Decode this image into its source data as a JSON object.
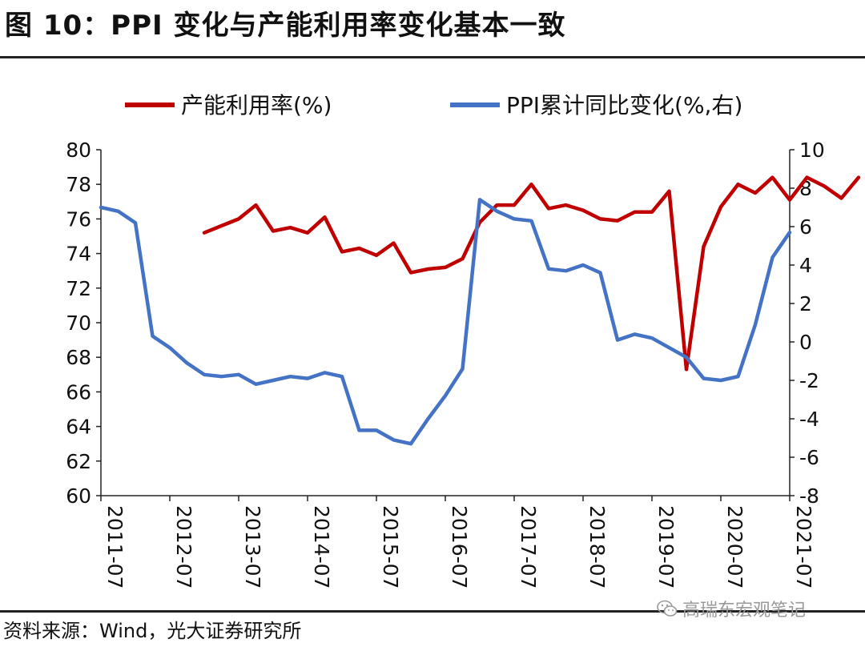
{
  "title": "图 10：PPI 变化与产能利用率变化基本一致",
  "source": "资料来源：Wind，光大证券研究所",
  "watermark": "高瑞东宏观笔记",
  "chart_data": {
    "type": "line",
    "legend": [
      {
        "name": "产能利用率(%)",
        "color": "#c00000"
      },
      {
        "name": "PPI累计同比变化(%,右)",
        "color": "#4472c4"
      }
    ],
    "legend_position": "top",
    "x_ticks": [
      "2011-07",
      "2012-07",
      "2013-07",
      "2014-07",
      "2015-07",
      "2016-07",
      "2017-07",
      "2018-07",
      "2019-07",
      "2020-07",
      "2021-07"
    ],
    "y_left": {
      "min": 60,
      "max": 80,
      "ticks": [
        60,
        62,
        64,
        66,
        68,
        70,
        72,
        74,
        76,
        78,
        80
      ]
    },
    "y_right": {
      "min": -8,
      "max": 10,
      "ticks": [
        -8,
        -6,
        -4,
        -2,
        0,
        2,
        4,
        6,
        8,
        10
      ]
    },
    "grid": false,
    "series": [
      {
        "name": "产能利用率(%)",
        "axis": "left",
        "color": "#c00000",
        "x": [
          2013.0,
          2013.25,
          2013.5,
          2013.75,
          2014.0,
          2014.25,
          2014.5,
          2014.75,
          2015.0,
          2015.25,
          2015.5,
          2015.75,
          2016.0,
          2016.25,
          2016.5,
          2016.75,
          2017.0,
          2017.25,
          2017.5,
          2017.75,
          2018.0,
          2018.25,
          2018.5,
          2018.75,
          2019.0,
          2019.25,
          2019.5,
          2019.75,
          2020.0,
          2020.25,
          2020.5,
          2020.75,
          2021.0,
          2021.25,
          2021.5,
          2021.75,
          2022.0,
          2022.25,
          2022.5
        ],
        "values": [
          75.2,
          75.6,
          76.0,
          76.8,
          75.3,
          75.5,
          75.2,
          76.1,
          74.1,
          74.3,
          73.9,
          74.6,
          72.9,
          73.1,
          73.2,
          73.7,
          75.8,
          76.8,
          76.8,
          78.0,
          76.6,
          76.8,
          76.5,
          76.0,
          75.9,
          76.4,
          76.4,
          77.6,
          67.3,
          74.4,
          76.7,
          78.0,
          77.5,
          78.4,
          77.1,
          78.4,
          77.9,
          77.2,
          78.4
        ]
      },
      {
        "name": "PPI累计同比变化(%,右)",
        "axis": "right",
        "color": "#4472c4",
        "x": [
          2011.5,
          2011.75,
          2012.0,
          2012.25,
          2012.5,
          2012.75,
          2013.0,
          2013.25,
          2013.5,
          2013.75,
          2014.0,
          2014.25,
          2014.5,
          2014.75,
          2015.0,
          2015.25,
          2015.5,
          2015.75,
          2016.0,
          2016.25,
          2016.5,
          2016.75,
          2017.0,
          2017.25,
          2017.5,
          2017.75,
          2018.0,
          2018.25,
          2018.5,
          2018.75,
          2019.0,
          2019.25,
          2019.5,
          2019.75,
          2020.0,
          2020.25,
          2020.5,
          2020.75,
          2021.0,
          2021.25,
          2021.5
        ],
        "values": [
          7.0,
          6.8,
          6.2,
          0.3,
          -0.3,
          -1.1,
          -1.7,
          -1.8,
          -1.7,
          -2.2,
          -2.0,
          -1.8,
          -1.9,
          -1.6,
          -1.8,
          -4.6,
          -4.6,
          -5.1,
          -5.3,
          -4.0,
          -2.8,
          -1.4,
          7.4,
          6.8,
          6.4,
          6.3,
          3.8,
          3.7,
          4.0,
          3.6,
          0.1,
          0.4,
          0.2,
          -0.3,
          -0.8,
          -1.9,
          -2.0,
          -1.8,
          0.9,
          4.4,
          5.7
        ]
      }
    ]
  }
}
